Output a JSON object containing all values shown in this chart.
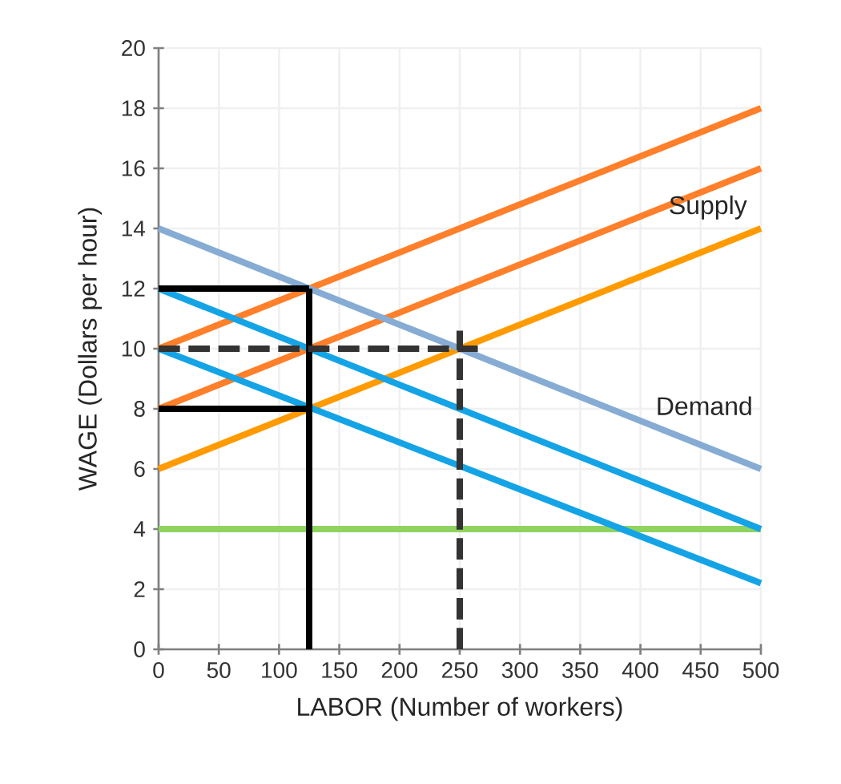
{
  "chart_data": {
    "type": "line",
    "xlabel": "LABOR (Number of workers)",
    "ylabel": "WAGE (Dollars per hour)",
    "xlim": [
      0,
      500
    ],
    "ylim": [
      0,
      20
    ],
    "xticks": [
      0,
      50,
      100,
      150,
      200,
      250,
      300,
      350,
      400,
      450,
      500
    ],
    "yticks": [
      0,
      2,
      4,
      6,
      8,
      10,
      12,
      14,
      16,
      18,
      20
    ],
    "grid": true,
    "marker": "none",
    "series": [
      {
        "color": "#8fd460",
        "x": [
          0,
          500
        ],
        "values": [
          4,
          4
        ]
      },
      {
        "color": "#ff9a00",
        "x": [
          0,
          500
        ],
        "values": [
          6,
          14
        ]
      },
      {
        "color": "#ff7f2a",
        "x": [
          0,
          500
        ],
        "values": [
          8,
          16
        ]
      },
      {
        "color": "#ff7f2a",
        "x": [
          0,
          500
        ],
        "values": [
          10,
          18
        ]
      },
      {
        "color": "#86acd4",
        "x": [
          0,
          500
        ],
        "values": [
          14,
          6
        ]
      },
      {
        "color": "#14a4e6",
        "x": [
          0,
          500
        ],
        "values": [
          12,
          4
        ]
      },
      {
        "color": "#14a4e6",
        "x": [
          0,
          500
        ],
        "values": [
          10,
          2.2
        ]
      },
      {
        "color": "#000000",
        "x": [
          125,
          125
        ],
        "values": [
          0,
          12
        ]
      },
      {
        "color": "#000000",
        "x": [
          0,
          125
        ],
        "values": [
          12,
          12
        ]
      },
      {
        "color": "#000000",
        "x": [
          0,
          125
        ],
        "values": [
          8,
          8
        ]
      },
      {
        "color": "#333333",
        "line_style": "dashed",
        "x": [
          0,
          265
        ],
        "values": [
          10,
          10
        ]
      },
      {
        "color": "#333333",
        "line_style": "dashed",
        "x": [
          250,
          250
        ],
        "values": [
          0,
          10.6
        ]
      }
    ],
    "annotations": [
      "Supply",
      "Demand"
    ]
  }
}
